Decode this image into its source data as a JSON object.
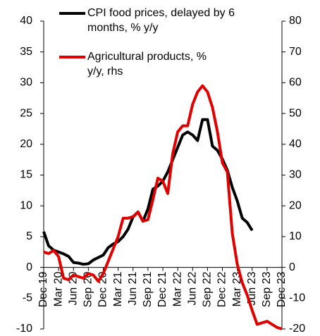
{
  "chart_data": {
    "type": "line",
    "categories": [
      "Dec 19",
      null,
      null,
      "Mar 20",
      null,
      null,
      "Jun 20",
      null,
      null,
      "Sep 20",
      null,
      null,
      "Dec 20",
      null,
      null,
      "Mar 21",
      null,
      null,
      "Jun 21",
      null,
      null,
      "Sep 21",
      null,
      null,
      "Dec 21",
      null,
      null,
      "Mar 22",
      null,
      null,
      "Jun 22",
      null,
      null,
      "Sep 22",
      null,
      null,
      "Dec 22",
      null,
      null,
      "Mar 23",
      null,
      null,
      "Jun 23",
      null,
      null,
      "Sep 23",
      null,
      null,
      "Dec 23"
    ],
    "series": [
      {
        "name": "CPI food prices, delayed by 6 months, % y/y",
        "color": "#000000",
        "values": [
          5.8,
          3.5,
          2.8,
          2.5,
          2.2,
          1.8,
          0.8,
          0.7,
          0.5,
          0.6,
          1.2,
          1.6,
          2.0,
          3.2,
          3.8,
          4.2,
          5.0,
          6.2,
          8.2,
          9.0,
          7.5,
          9.5,
          12.7,
          13.2,
          14.0,
          15.5,
          17.5,
          19.5,
          21.5,
          22.0,
          21.5,
          20.6,
          24.0,
          24.0,
          19.7,
          19.0,
          17.6,
          15.8,
          13.0,
          10.8,
          8.0,
          7.3,
          6.0,
          null,
          null,
          null,
          null,
          null,
          null
        ]
      },
      {
        "name": "Agricultural products, % y/y, rhs",
        "color": "#e00000",
        "axis": "y2",
        "values": [
          5,
          4.5,
          5.5,
          3.5,
          -3.5,
          -4,
          -2.5,
          -3,
          -3.5,
          -2,
          -2.5,
          -4.5,
          -2,
          2,
          6,
          10,
          16,
          16,
          16.5,
          18,
          15,
          15.5,
          22,
          29,
          28,
          24,
          37,
          44,
          46,
          46,
          53,
          57,
          59,
          57,
          52,
          44,
          34,
          31,
          11,
          1,
          -5,
          -9,
          -14,
          -18.5,
          -18,
          -17.5,
          -18.5,
          -19.5,
          -20
        ]
      }
    ],
    "ylim": [
      -10,
      40
    ],
    "yticks": [
      -10,
      -5,
      0,
      5,
      10,
      15,
      20,
      25,
      30,
      35,
      40
    ],
    "y2lim": [
      -20,
      80
    ],
    "y2ticks": [
      -20,
      -10,
      0,
      10,
      20,
      30,
      40,
      50,
      60,
      70,
      80
    ],
    "legend": "upper left",
    "grid": false
  }
}
